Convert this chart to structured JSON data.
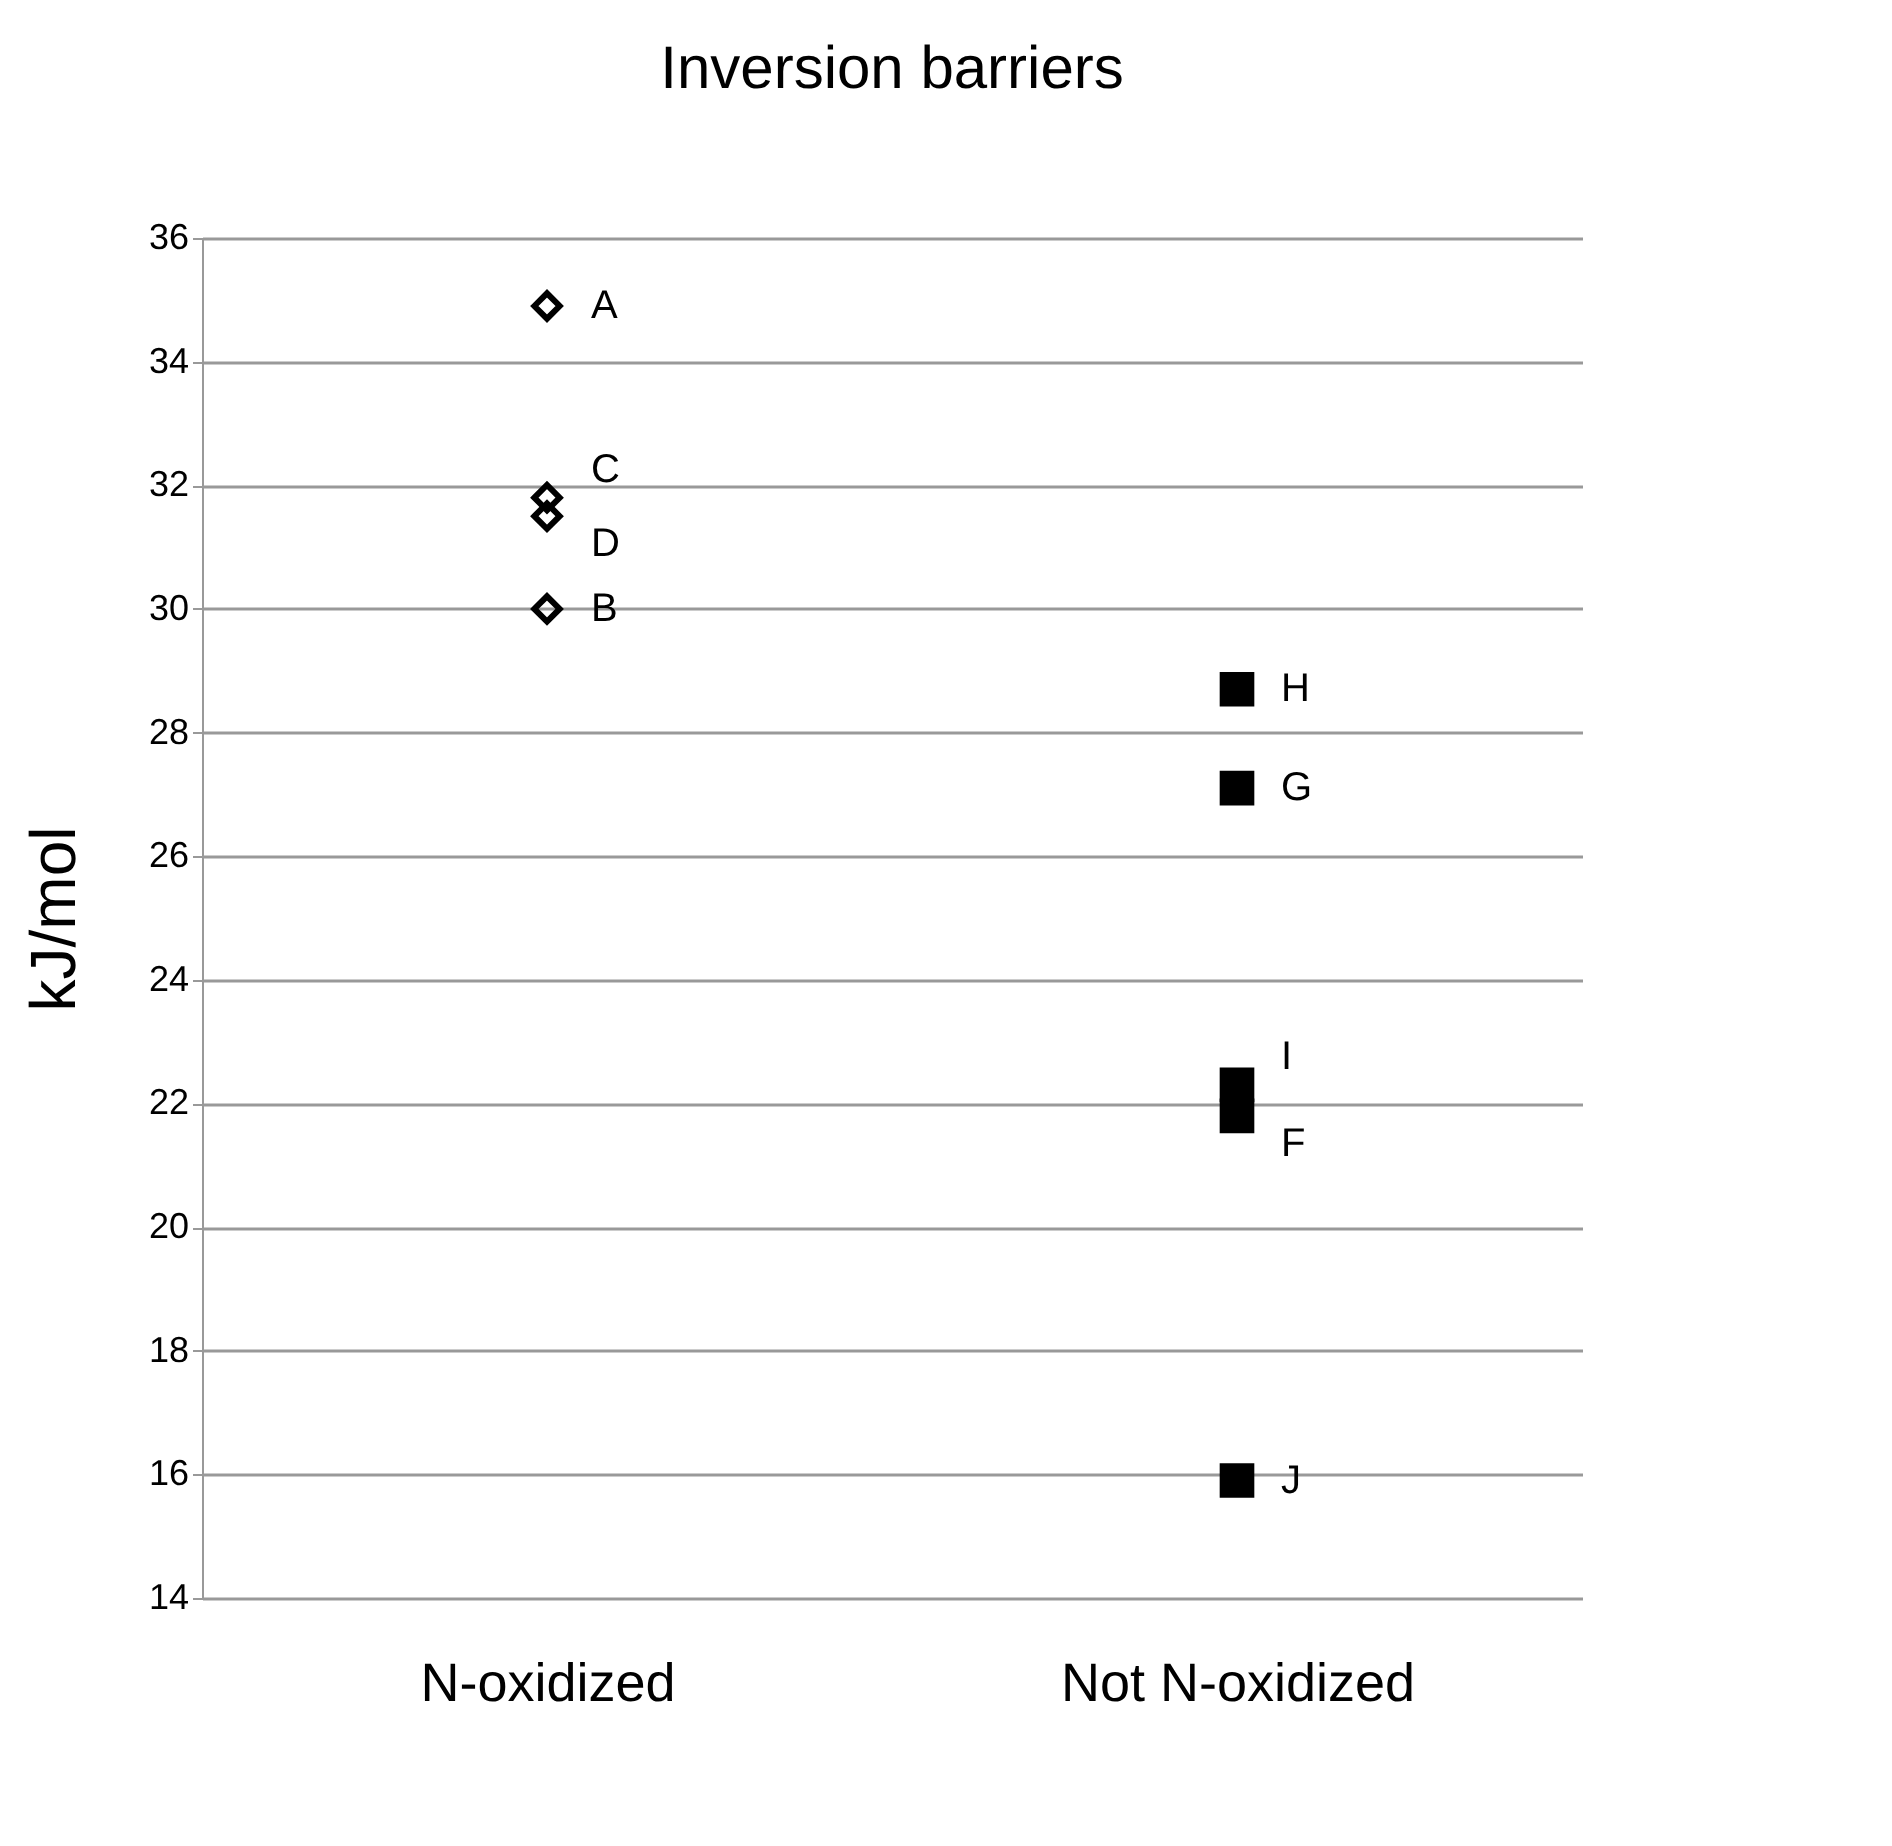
{
  "chart_data": {
    "type": "scatter",
    "title": "Inversion barriers",
    "ylabel": "kJ/mol",
    "categories": [
      "N-oxidized",
      "Not N-oxidized"
    ],
    "series": [
      {
        "x": [
          "N-oxidized",
          "N-oxidized",
          "N-oxidized",
          "N-oxidized"
        ],
        "values": [
          34.9,
          30.0,
          31.8,
          31.5
        ],
        "color": "#000000",
        "marker": "diamond"
      },
      {
        "x": [
          "Not N-oxidized",
          "Not N-oxidized",
          "Not N-oxidized",
          "Not N-oxidized",
          "Not N-oxidized"
        ],
        "values": [
          21.8,
          27.1,
          28.7,
          22.3,
          15.9
        ],
        "color": "#000000",
        "marker": "square"
      }
    ],
    "ylim": [
      14,
      36
    ],
    "yticks": [
      14,
      16,
      18,
      20,
      22,
      24,
      26,
      28,
      30,
      32,
      34,
      36
    ],
    "grid": "y",
    "annotations": [
      {
        "text": "A",
        "x": "N-oxidized",
        "y": 34.9
      },
      {
        "text": "B",
        "x": "N-oxidized",
        "y": 30.0
      },
      {
        "text": "C",
        "x": "N-oxidized",
        "y": 31.8
      },
      {
        "text": "D",
        "x": "N-oxidized",
        "y": 31.5
      },
      {
        "text": "F",
        "x": "Not N-oxidized",
        "y": 21.8
      },
      {
        "text": "G",
        "x": "Not N-oxidized",
        "y": 27.1
      },
      {
        "text": "H",
        "x": "Not N-oxidized",
        "y": 28.7
      },
      {
        "text": "I",
        "x": "Not N-oxidized",
        "y": 22.3
      },
      {
        "text": "J",
        "x": "Not N-oxidized",
        "y": 15.9
      }
    ]
  }
}
